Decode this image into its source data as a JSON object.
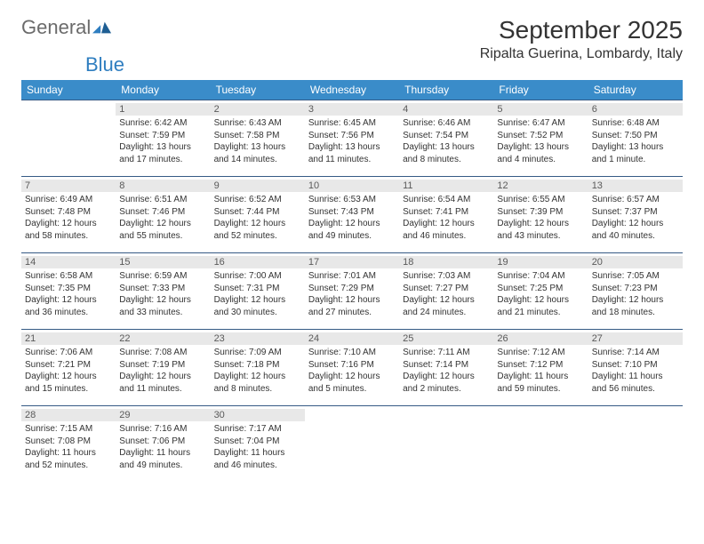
{
  "brand": {
    "part1": "General",
    "part2": "Blue"
  },
  "header": {
    "month_title": "September 2025",
    "location": "Ripalta Guerina, Lombardy, Italy"
  },
  "colors": {
    "header_bg": "#3a8cc9",
    "row_divider": "#355a85",
    "daynum_bg": "#e8e8e8",
    "brand_gray": "#6b6b6b",
    "brand_blue": "#2f7ec0"
  },
  "typography": {
    "month_fontsize": 28,
    "location_fontsize": 16,
    "weekday_fontsize": 12,
    "daynum_fontsize": 11,
    "info_fontsize": 10
  },
  "weekdays": [
    "Sunday",
    "Monday",
    "Tuesday",
    "Wednesday",
    "Thursday",
    "Friday",
    "Saturday"
  ],
  "grid": {
    "first_weekday_index": 1,
    "days_in_month": 30
  },
  "days": {
    "1": {
      "sunrise": "6:42 AM",
      "sunset": "7:59 PM",
      "daylight": "13 hours and 17 minutes."
    },
    "2": {
      "sunrise": "6:43 AM",
      "sunset": "7:58 PM",
      "daylight": "13 hours and 14 minutes."
    },
    "3": {
      "sunrise": "6:45 AM",
      "sunset": "7:56 PM",
      "daylight": "13 hours and 11 minutes."
    },
    "4": {
      "sunrise": "6:46 AM",
      "sunset": "7:54 PM",
      "daylight": "13 hours and 8 minutes."
    },
    "5": {
      "sunrise": "6:47 AM",
      "sunset": "7:52 PM",
      "daylight": "13 hours and 4 minutes."
    },
    "6": {
      "sunrise": "6:48 AM",
      "sunset": "7:50 PM",
      "daylight": "13 hours and 1 minute."
    },
    "7": {
      "sunrise": "6:49 AM",
      "sunset": "7:48 PM",
      "daylight": "12 hours and 58 minutes."
    },
    "8": {
      "sunrise": "6:51 AM",
      "sunset": "7:46 PM",
      "daylight": "12 hours and 55 minutes."
    },
    "9": {
      "sunrise": "6:52 AM",
      "sunset": "7:44 PM",
      "daylight": "12 hours and 52 minutes."
    },
    "10": {
      "sunrise": "6:53 AM",
      "sunset": "7:43 PM",
      "daylight": "12 hours and 49 minutes."
    },
    "11": {
      "sunrise": "6:54 AM",
      "sunset": "7:41 PM",
      "daylight": "12 hours and 46 minutes."
    },
    "12": {
      "sunrise": "6:55 AM",
      "sunset": "7:39 PM",
      "daylight": "12 hours and 43 minutes."
    },
    "13": {
      "sunrise": "6:57 AM",
      "sunset": "7:37 PM",
      "daylight": "12 hours and 40 minutes."
    },
    "14": {
      "sunrise": "6:58 AM",
      "sunset": "7:35 PM",
      "daylight": "12 hours and 36 minutes."
    },
    "15": {
      "sunrise": "6:59 AM",
      "sunset": "7:33 PM",
      "daylight": "12 hours and 33 minutes."
    },
    "16": {
      "sunrise": "7:00 AM",
      "sunset": "7:31 PM",
      "daylight": "12 hours and 30 minutes."
    },
    "17": {
      "sunrise": "7:01 AM",
      "sunset": "7:29 PM",
      "daylight": "12 hours and 27 minutes."
    },
    "18": {
      "sunrise": "7:03 AM",
      "sunset": "7:27 PM",
      "daylight": "12 hours and 24 minutes."
    },
    "19": {
      "sunrise": "7:04 AM",
      "sunset": "7:25 PM",
      "daylight": "12 hours and 21 minutes."
    },
    "20": {
      "sunrise": "7:05 AM",
      "sunset": "7:23 PM",
      "daylight": "12 hours and 18 minutes."
    },
    "21": {
      "sunrise": "7:06 AM",
      "sunset": "7:21 PM",
      "daylight": "12 hours and 15 minutes."
    },
    "22": {
      "sunrise": "7:08 AM",
      "sunset": "7:19 PM",
      "daylight": "12 hours and 11 minutes."
    },
    "23": {
      "sunrise": "7:09 AM",
      "sunset": "7:18 PM",
      "daylight": "12 hours and 8 minutes."
    },
    "24": {
      "sunrise": "7:10 AM",
      "sunset": "7:16 PM",
      "daylight": "12 hours and 5 minutes."
    },
    "25": {
      "sunrise": "7:11 AM",
      "sunset": "7:14 PM",
      "daylight": "12 hours and 2 minutes."
    },
    "26": {
      "sunrise": "7:12 AM",
      "sunset": "7:12 PM",
      "daylight": "11 hours and 59 minutes."
    },
    "27": {
      "sunrise": "7:14 AM",
      "sunset": "7:10 PM",
      "daylight": "11 hours and 56 minutes."
    },
    "28": {
      "sunrise": "7:15 AM",
      "sunset": "7:08 PM",
      "daylight": "11 hours and 52 minutes."
    },
    "29": {
      "sunrise": "7:16 AM",
      "sunset": "7:06 PM",
      "daylight": "11 hours and 49 minutes."
    },
    "30": {
      "sunrise": "7:17 AM",
      "sunset": "7:04 PM",
      "daylight": "11 hours and 46 minutes."
    }
  },
  "labels": {
    "sunrise_prefix": "Sunrise: ",
    "sunset_prefix": "Sunset: ",
    "daylight_prefix": "Daylight: "
  }
}
